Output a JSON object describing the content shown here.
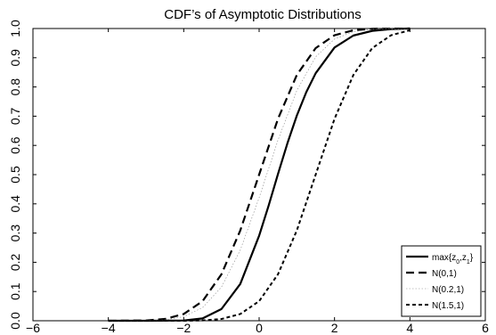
{
  "chart_data": {
    "type": "line",
    "title": "CDF’s of Asymptotic Distributions",
    "xlabel": "",
    "ylabel": "",
    "xlim": [
      -6,
      6
    ],
    "ylim": [
      0,
      1
    ],
    "x_ticks": [
      -6,
      -4,
      -2,
      0,
      2,
      4,
      6
    ],
    "y_ticks": [
      0.0,
      0.1,
      0.2,
      0.3,
      0.4,
      0.5,
      0.6,
      0.7,
      0.8,
      0.9,
      1.0
    ],
    "x_tick_labels": [
      "−6",
      "−4",
      "−2",
      "0",
      "2",
      "4",
      "6"
    ],
    "y_tick_labels": [
      "0.0",
      "0.1",
      "0.2",
      "0.3",
      "0.4",
      "0.5",
      "0.6",
      "0.7",
      "0.8",
      "0.9",
      "1.0"
    ],
    "grid": false,
    "legend_position": "bottom-right",
    "legend_title": "",
    "series": [
      {
        "name": "max{z0,z1}",
        "legend_label": {
          "base": "max{z",
          "sub1": "0",
          "mid": ",z",
          "sub2": "1",
          "end": "}"
        },
        "style": "solid-thick",
        "x": [
          -4.0,
          -3.0,
          -2.0,
          -1.5,
          -1.0,
          -0.5,
          0.0,
          0.25,
          0.5,
          0.75,
          1.0,
          1.25,
          1.5,
          2.0,
          2.5,
          3.0,
          3.5,
          4.0
        ],
        "y": [
          0.0,
          0.0,
          0.001,
          0.008,
          0.04,
          0.126,
          0.291,
          0.393,
          0.502,
          0.607,
          0.702,
          0.782,
          0.847,
          0.935,
          0.976,
          0.992,
          0.998,
          1.0
        ]
      },
      {
        "name": "N(0,1)",
        "style": "dashed-long",
        "x": [
          -4.0,
          -3.0,
          -2.5,
          -2.0,
          -1.5,
          -1.0,
          -0.5,
          0.0,
          0.5,
          1.0,
          1.5,
          2.0,
          2.5,
          3.0,
          4.0
        ],
        "y": [
          0.0,
          0.001,
          0.006,
          0.023,
          0.067,
          0.159,
          0.309,
          0.5,
          0.691,
          0.841,
          0.933,
          0.977,
          0.994,
          0.999,
          1.0
        ]
      },
      {
        "name": "N(0.2,1)",
        "style": "thin-dotted",
        "x": [
          -4.0,
          -3.0,
          -2.5,
          -2.0,
          -1.5,
          -1.0,
          -0.5,
          0.0,
          0.5,
          1.0,
          1.5,
          2.0,
          2.5,
          3.0,
          4.0
        ],
        "y": [
          0.0,
          0.0,
          0.003,
          0.014,
          0.045,
          0.115,
          0.242,
          0.421,
          0.618,
          0.788,
          0.903,
          0.964,
          0.989,
          0.997,
          1.0
        ]
      },
      {
        "name": "N(1.5,1)",
        "style": "dashed-short",
        "x": [
          -4.0,
          -2.0,
          -1.5,
          -1.0,
          -0.5,
          0.0,
          0.5,
          1.0,
          1.5,
          2.0,
          2.5,
          3.0,
          3.5,
          4.0
        ],
        "y": [
          0.0,
          0.0,
          0.001,
          0.006,
          0.023,
          0.067,
          0.159,
          0.309,
          0.5,
          0.691,
          0.841,
          0.933,
          0.977,
          0.994
        ]
      }
    ]
  }
}
